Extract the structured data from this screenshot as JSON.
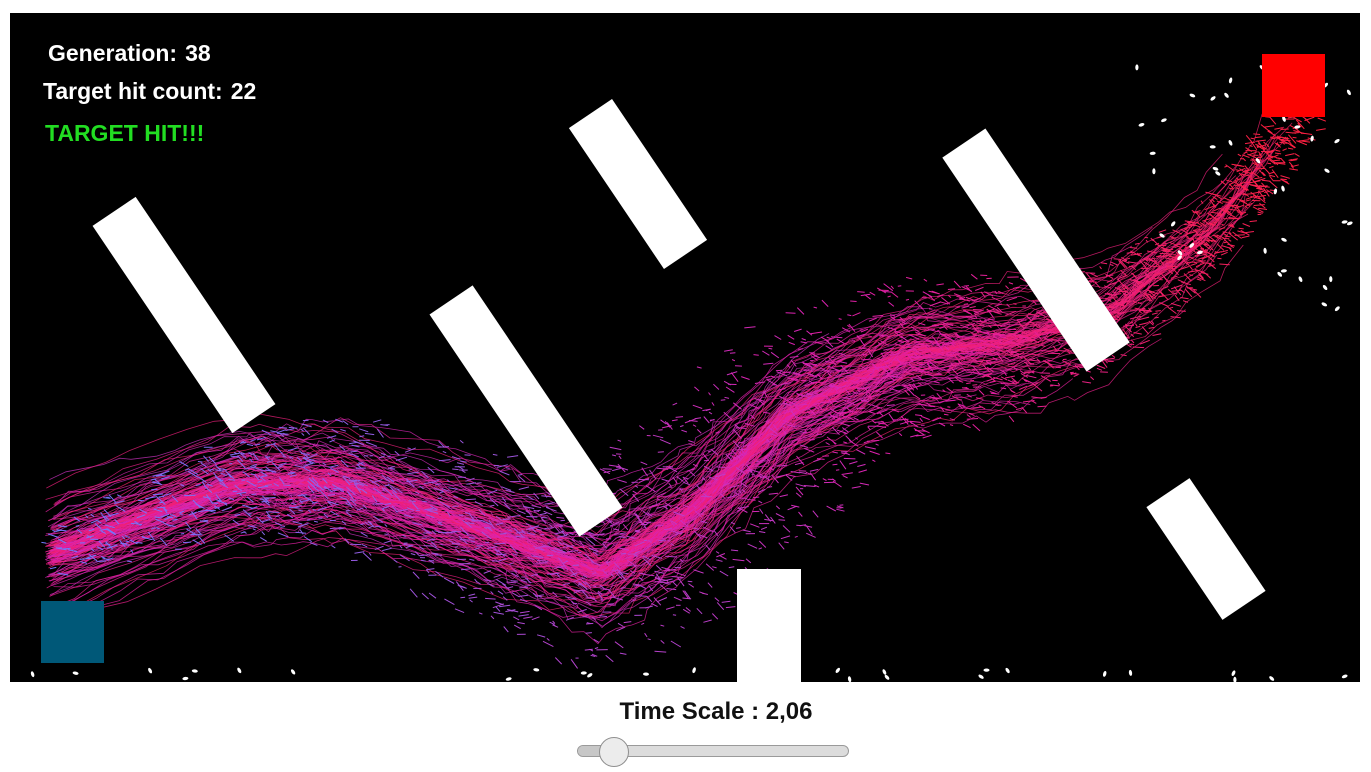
{
  "hud": {
    "generation_label": "Generation:",
    "generation_value": "38",
    "hits_label": "Target hit count:",
    "hits_value": "22",
    "status_text": "TARGET HIT!!!"
  },
  "controls": {
    "time_scale_label": "Time Scale : 2,06",
    "time_scale_value": 2.06,
    "slider_fraction": 0.1
  },
  "colors": {
    "background": "#000000",
    "obstacle": "#ffffff",
    "start_square": "#005878",
    "target_square": "#ff0000",
    "status_text": "#22dd22",
    "trail_start": "#6f7bff",
    "trail_mid": "#e020b0",
    "trail_end": "#ff2040"
  },
  "icons": {
    "start": "start-square-icon",
    "target": "target-square-icon"
  }
}
